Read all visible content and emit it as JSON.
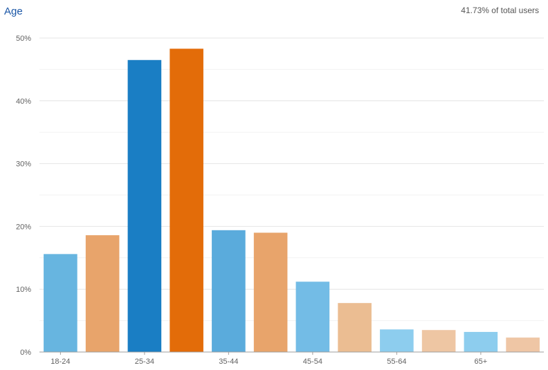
{
  "header": {
    "title": "Age",
    "summary": "41.73% of total users"
  },
  "chart_data": {
    "type": "bar",
    "title": "Age",
    "categories": [
      "18-24",
      "25-34",
      "35-44",
      "45-54",
      "55-64",
      "65+"
    ],
    "series": [
      {
        "color": "#1a7ec4",
        "values": [
          15.6,
          46.5,
          19.4,
          11.2,
          3.6,
          3.2
        ]
      },
      {
        "color": "#e36c09",
        "values": [
          18.6,
          48.3,
          19.0,
          7.8,
          3.5,
          2.3
        ]
      }
    ],
    "category_colors": [
      [
        "#67b5e0",
        "#e8a46b"
      ],
      [
        "#1a7ec4",
        "#e36c09"
      ],
      [
        "#5aabdc",
        "#e8a46b"
      ],
      [
        "#73bce6",
        "#ebbd92"
      ],
      [
        "#8dcdee",
        "#eec6a3"
      ],
      [
        "#8dcdee",
        "#efc6a5"
      ]
    ],
    "ylim": [
      0,
      50
    ],
    "yticks": [
      0,
      10,
      20,
      30,
      40,
      50
    ],
    "ytick_labels": [
      "0%",
      "10%",
      "20%",
      "30%",
      "40%",
      "50%"
    ],
    "grid": true
  }
}
